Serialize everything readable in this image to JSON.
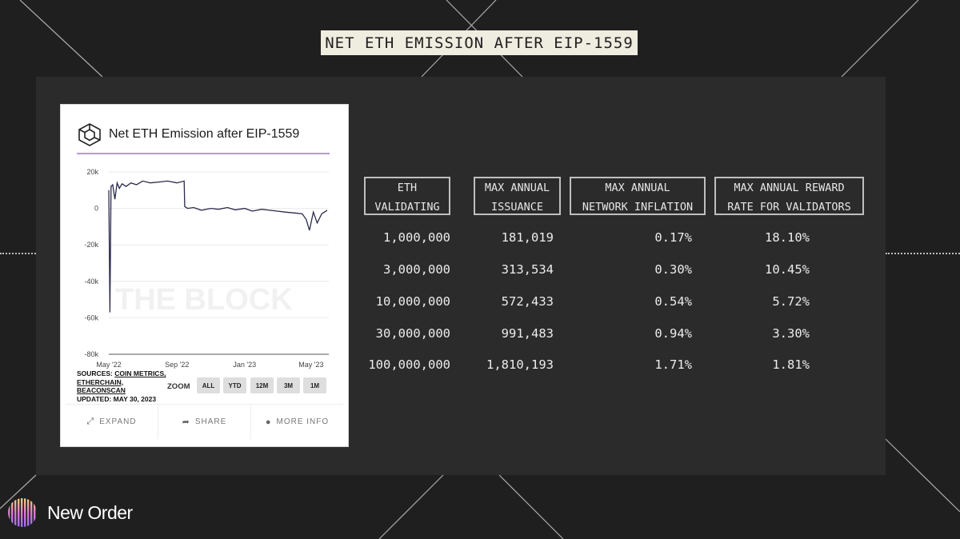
{
  "page": {
    "title": "NET ETH EMISSION AFTER EIP-1559"
  },
  "chart_card": {
    "title": "Net ETH Emission after EIP-1559",
    "watermark": "THE BLOCK",
    "sources_label": "SOURCES:",
    "sources": [
      "COIN METRICS,",
      "ETHERCHAIN,",
      "BEACONSCAN"
    ],
    "updated": "UPDATED: MAY 30, 2023",
    "zoom_label": "ZOOM",
    "zoom_options": [
      "ALL",
      "YTD",
      "12M",
      "3M",
      "1M"
    ],
    "actions": {
      "expand": "EXPAND",
      "share": "SHARE",
      "more_info": "MORE INFO"
    },
    "line_color": "#2a2a4a",
    "accent_color": "#b69ae0"
  },
  "chart_data": {
    "type": "line",
    "title": "Net ETH Emission after EIP-1559",
    "xlabel": "",
    "ylabel": "",
    "x_tick_labels": [
      "May '22",
      "Sep '22",
      "Jan '23",
      "May '23"
    ],
    "y_tick_labels": [
      "20k",
      "0",
      "-20k",
      "-40k",
      "-60k",
      "-80k"
    ],
    "ylim": [
      -80000,
      20000
    ],
    "grid": true,
    "series": [
      {
        "x": [
          "2022-05-01",
          "2022-05-03",
          "2022-05-05",
          "2022-05-08",
          "2022-05-12",
          "2022-05-16",
          "2022-05-20",
          "2022-05-25",
          "2022-06-01",
          "2022-06-10",
          "2022-06-20",
          "2022-07-01",
          "2022-07-15",
          "2022-08-01",
          "2022-08-15",
          "2022-09-01",
          "2022-09-14",
          "2022-09-15",
          "2022-09-20",
          "2022-10-01",
          "2022-10-15",
          "2022-11-01",
          "2022-11-15",
          "2022-12-01",
          "2022-12-15",
          "2023-01-01",
          "2023-01-15",
          "2023-02-01",
          "2023-02-15",
          "2023-03-01",
          "2023-03-15",
          "2023-04-01",
          "2023-04-15",
          "2023-04-22",
          "2023-04-28",
          "2023-05-05",
          "2023-05-12",
          "2023-05-20",
          "2023-05-30"
        ],
        "y": [
          10000,
          -57000,
          12000,
          13000,
          5000,
          14000,
          11000,
          13500,
          12000,
          14000,
          13000,
          15000,
          14000,
          14500,
          15000,
          14000,
          15000,
          1000,
          0,
          500,
          -1000,
          0,
          -500,
          500,
          -800,
          0,
          -1500,
          -500,
          -1000,
          -1500,
          -2000,
          -2500,
          -3000,
          -6000,
          -12000,
          -2000,
          -8000,
          -3000,
          -1000
        ]
      }
    ]
  },
  "table": {
    "headers": [
      [
        "ETH",
        "VALIDATING"
      ],
      [
        "MAX ANNUAL",
        "ISSUANCE"
      ],
      [
        "MAX ANNUAL",
        "NETWORK INFLATION"
      ],
      [
        "MAX ANNUAL REWARD",
        "RATE FOR VALIDATORS"
      ]
    ],
    "rows": [
      [
        "1,000,000",
        "181,019",
        "0.17%",
        "18.10%"
      ],
      [
        "3,000,000",
        "313,534",
        "0.30%",
        "10.45%"
      ],
      [
        "10,000,000",
        "572,433",
        "0.54%",
        "5.72%"
      ],
      [
        "30,000,000",
        "991,483",
        "0.94%",
        "3.30%"
      ],
      [
        "100,000,000",
        "1,810,193",
        "1.71%",
        "1.81%"
      ]
    ]
  },
  "brand": {
    "name": "New Order"
  },
  "colors": {
    "background": "#1f1f1f",
    "panel": "#2b2b2b",
    "banner": "#efece0",
    "text": "#ececec"
  }
}
